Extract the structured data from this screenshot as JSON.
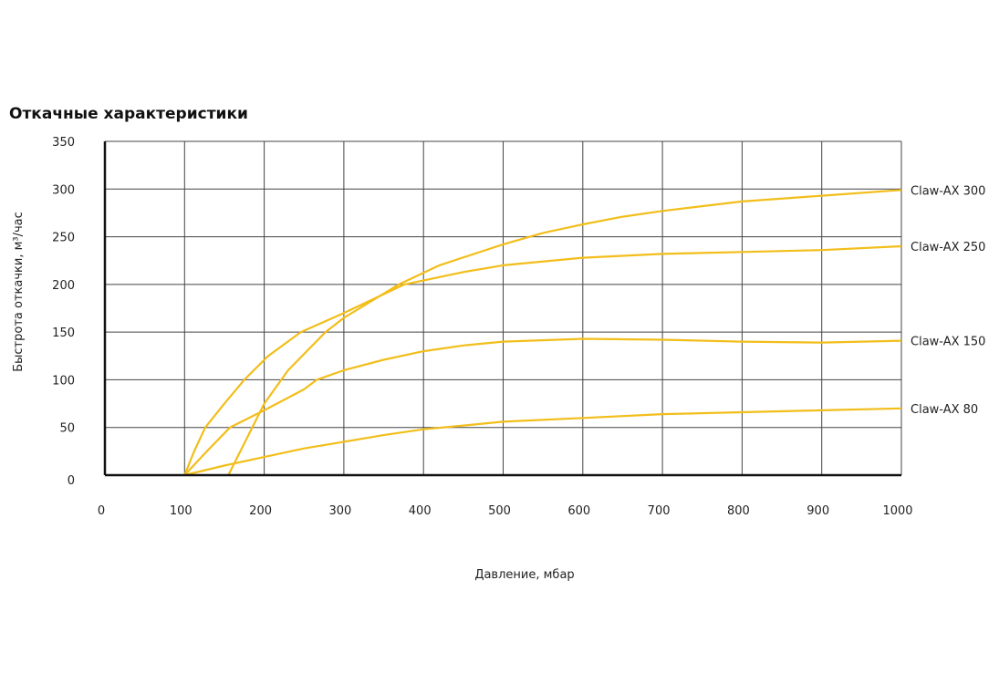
{
  "chart_data": {
    "type": "line",
    "title": "Откачные характеристики",
    "xlabel": "Давление, мбар",
    "ylabel": "Быстрота откачки, м³/час",
    "xlim": [
      0,
      1000
    ],
    "ylim": [
      0,
      350
    ],
    "xticks": [
      0,
      100,
      200,
      300,
      400,
      500,
      600,
      700,
      800,
      900,
      1000
    ],
    "yticks": [
      0,
      50,
      100,
      150,
      200,
      250,
      300,
      350
    ],
    "grid": true,
    "color": "#F2BE1A",
    "series": [
      {
        "name": "Claw-AX 300",
        "points": [
          [
            155,
            0
          ],
          [
            170,
            25
          ],
          [
            185,
            50
          ],
          [
            200,
            75
          ],
          [
            230,
            110
          ],
          [
            277,
            150
          ],
          [
            300,
            165
          ],
          [
            369,
            200
          ],
          [
            420,
            220
          ],
          [
            500,
            242
          ],
          [
            550,
            254
          ],
          [
            600,
            263
          ],
          [
            650,
            271
          ],
          [
            700,
            277
          ],
          [
            800,
            287
          ],
          [
            900,
            293
          ],
          [
            1000,
            299
          ]
        ]
      },
      {
        "name": "Claw-AX 250",
        "points": [
          [
            100,
            0
          ],
          [
            112,
            25
          ],
          [
            126,
            50
          ],
          [
            150,
            75
          ],
          [
            175,
            100
          ],
          [
            205,
            125
          ],
          [
            246,
            150
          ],
          [
            300,
            170
          ],
          [
            376,
            200
          ],
          [
            450,
            213
          ],
          [
            500,
            220
          ],
          [
            600,
            228
          ],
          [
            700,
            232
          ],
          [
            800,
            234
          ],
          [
            900,
            236
          ],
          [
            1000,
            240
          ]
        ]
      },
      {
        "name": "Claw-AX 150",
        "points": [
          [
            100,
            0
          ],
          [
            128,
            25
          ],
          [
            157,
            50
          ],
          [
            200,
            68
          ],
          [
            250,
            90
          ],
          [
            266,
            100
          ],
          [
            300,
            110
          ],
          [
            350,
            121
          ],
          [
            400,
            130
          ],
          [
            450,
            136
          ],
          [
            500,
            140
          ],
          [
            600,
            143
          ],
          [
            700,
            142
          ],
          [
            800,
            140
          ],
          [
            900,
            139
          ],
          [
            1000,
            141
          ]
        ]
      },
      {
        "name": "Claw-AX 80",
        "points": [
          [
            100,
            0
          ],
          [
            150,
            10
          ],
          [
            200,
            19
          ],
          [
            250,
            28
          ],
          [
            300,
            35
          ],
          [
            350,
            42
          ],
          [
            399,
            48
          ],
          [
            450,
            52
          ],
          [
            500,
            56
          ],
          [
            600,
            60
          ],
          [
            700,
            64
          ],
          [
            800,
            66
          ],
          [
            900,
            68
          ],
          [
            1000,
            70
          ]
        ]
      }
    ]
  }
}
